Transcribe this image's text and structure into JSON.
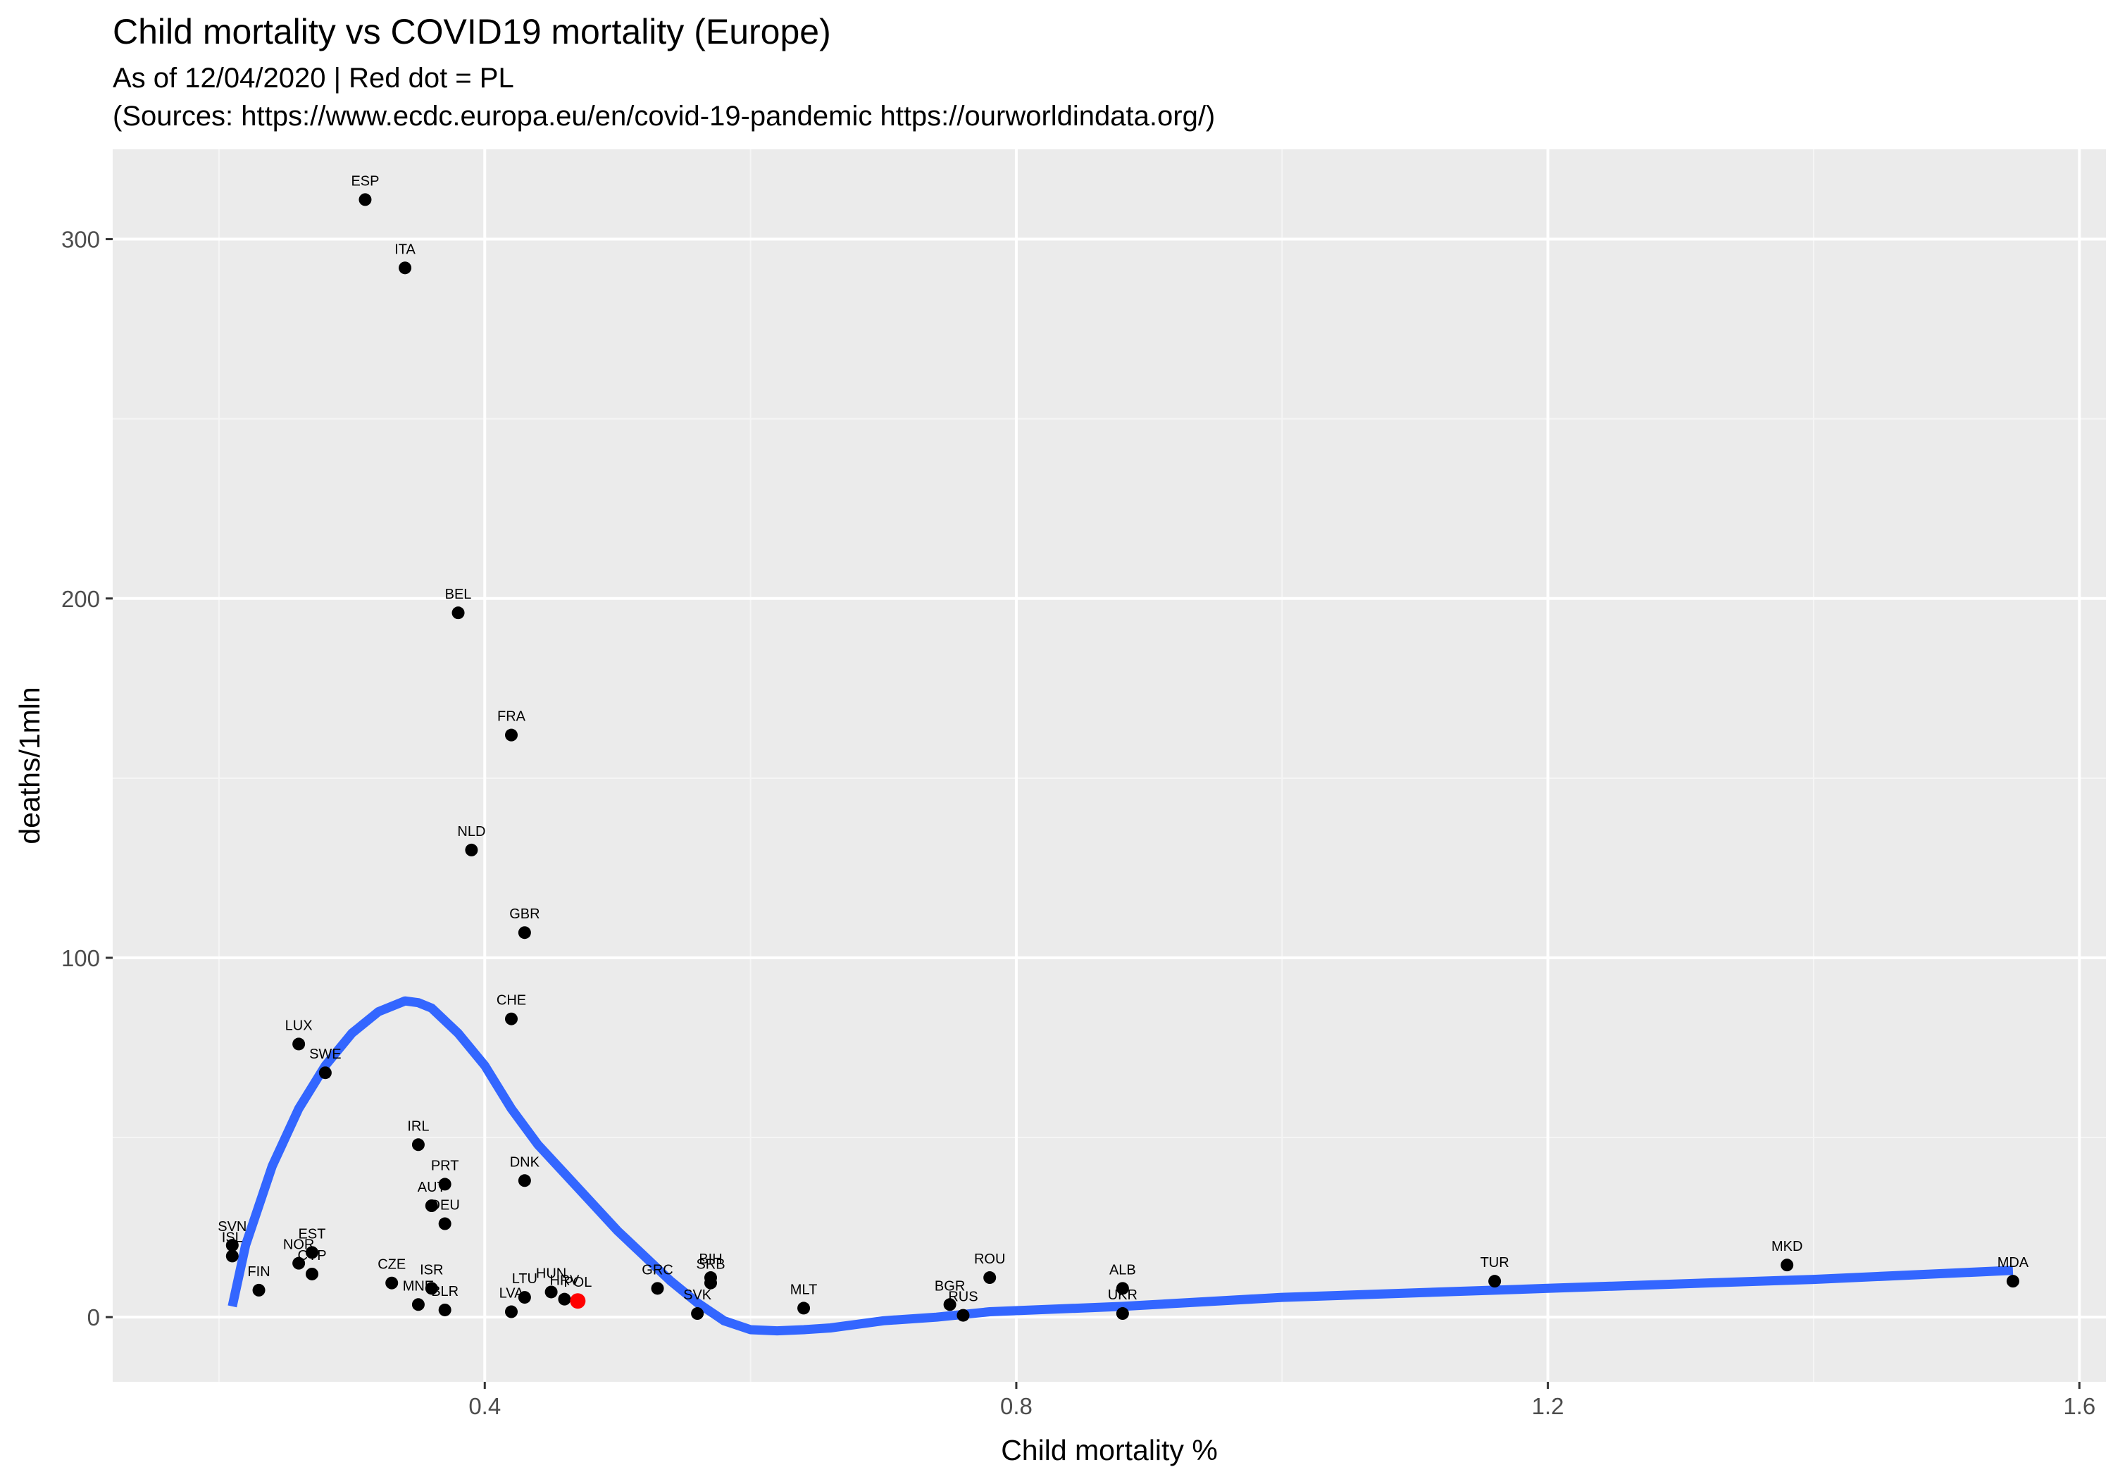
{
  "colors": {
    "panel": "#ebebeb",
    "grid_major": "#ffffff",
    "grid_minor": "#f5f5f5",
    "point": "#000000",
    "highlight_point": "#ff0000",
    "smooth_line": "#3366ff",
    "tick_label": "#4d4d4d"
  },
  "chart_data": {
    "type": "scatter",
    "title": "Child mortality vs COVID19 mortality (Europe)",
    "subtitle_lines": [
      "As of 12/04/2020 | Red dot = PL",
      "(Sources: https://www.ecdc.europa.eu/en/covid-19-pandemic https://ourworldindata.org/)"
    ],
    "xlabel": "Child mortality %",
    "ylabel": "deaths/1mln",
    "xlim": [
      0.12,
      1.62
    ],
    "ylim": [
      -18,
      325
    ],
    "x_ticks": [
      0.4,
      0.8,
      1.2,
      1.6
    ],
    "x_tick_labels": [
      "0.4",
      "0.8",
      "1.2",
      "1.6"
    ],
    "x_minor_ticks": [
      0.2,
      0.6,
      1.0,
      1.4
    ],
    "y_ticks": [
      0,
      100,
      200,
      300
    ],
    "y_tick_labels": [
      "0",
      "100",
      "200",
      "300"
    ],
    "y_minor_ticks": [
      50,
      150,
      250
    ],
    "grid": true,
    "legend": "none",
    "points": [
      {
        "label": "ESP",
        "x": 0.31,
        "y": 311
      },
      {
        "label": "ITA",
        "x": 0.34,
        "y": 292
      },
      {
        "label": "BEL",
        "x": 0.38,
        "y": 196
      },
      {
        "label": "FRA",
        "x": 0.42,
        "y": 162
      },
      {
        "label": "NLD",
        "x": 0.39,
        "y": 130
      },
      {
        "label": "GBR",
        "x": 0.43,
        "y": 107
      },
      {
        "label": "CHE",
        "x": 0.42,
        "y": 83
      },
      {
        "label": "LUX",
        "x": 0.26,
        "y": 76
      },
      {
        "label": "SWE",
        "x": 0.28,
        "y": 68
      },
      {
        "label": "IRL",
        "x": 0.35,
        "y": 48
      },
      {
        "label": "PRT",
        "x": 0.37,
        "y": 37
      },
      {
        "label": "DNK",
        "x": 0.43,
        "y": 38
      },
      {
        "label": "AUT",
        "x": 0.36,
        "y": 31
      },
      {
        "label": "DEU",
        "x": 0.37,
        "y": 26
      },
      {
        "label": "SVN",
        "x": 0.21,
        "y": 20
      },
      {
        "label": "ISL",
        "x": 0.21,
        "y": 17
      },
      {
        "label": "EST",
        "x": 0.27,
        "y": 18
      },
      {
        "label": "NOR",
        "x": 0.26,
        "y": 15
      },
      {
        "label": "CYP",
        "x": 0.27,
        "y": 12
      },
      {
        "label": "FIN",
        "x": 0.23,
        "y": 7.5
      },
      {
        "label": "CZE",
        "x": 0.33,
        "y": 9.5
      },
      {
        "label": "ISR",
        "x": 0.36,
        "y": 8
      },
      {
        "label": "MNE",
        "x": 0.35,
        "y": 3.5
      },
      {
        "label": "BLR",
        "x": 0.37,
        "y": 2
      },
      {
        "label": "LVA",
        "x": 0.42,
        "y": 1.5
      },
      {
        "label": "LTU",
        "x": 0.43,
        "y": 5.5
      },
      {
        "label": "HUN",
        "x": 0.45,
        "y": 7
      },
      {
        "label": "HRV",
        "x": 0.46,
        "y": 5
      },
      {
        "label": "POL",
        "x": 0.47,
        "y": 4.5,
        "highlight": true
      },
      {
        "label": "GRC",
        "x": 0.53,
        "y": 8
      },
      {
        "label": "SVK",
        "x": 0.56,
        "y": 1
      },
      {
        "label": "BIH",
        "x": 0.57,
        "y": 11
      },
      {
        "label": "SRB",
        "x": 0.57,
        "y": 9.5
      },
      {
        "label": "MLT",
        "x": 0.64,
        "y": 2.5
      },
      {
        "label": "BGR",
        "x": 0.75,
        "y": 3.5
      },
      {
        "label": "RUS",
        "x": 0.76,
        "y": 0.5
      },
      {
        "label": "ROU",
        "x": 0.78,
        "y": 11
      },
      {
        "label": "ALB",
        "x": 0.88,
        "y": 8
      },
      {
        "label": "UKR",
        "x": 0.88,
        "y": 1
      },
      {
        "label": "TUR",
        "x": 1.16,
        "y": 10
      },
      {
        "label": "MKD",
        "x": 1.38,
        "y": 14.5
      },
      {
        "label": "MDA",
        "x": 1.55,
        "y": 10
      }
    ],
    "smooth": {
      "x": [
        0.21,
        0.22,
        0.24,
        0.26,
        0.28,
        0.3,
        0.32,
        0.34,
        0.35,
        0.36,
        0.38,
        0.4,
        0.42,
        0.44,
        0.46,
        0.48,
        0.5,
        0.52,
        0.54,
        0.56,
        0.58,
        0.6,
        0.62,
        0.64,
        0.66,
        0.68,
        0.7,
        0.74,
        0.78,
        0.88,
        1.0,
        1.2,
        1.4,
        1.55
      ],
      "y": [
        3,
        20,
        42,
        58,
        70,
        79,
        85,
        88,
        87.5,
        86,
        79,
        70,
        58,
        48,
        40,
        32,
        24,
        17,
        10,
        4,
        -1,
        -3.5,
        -3.8,
        -3.5,
        -3,
        -2,
        -1,
        0,
        1.5,
        3,
        5.5,
        8,
        10.5,
        13
      ]
    }
  }
}
